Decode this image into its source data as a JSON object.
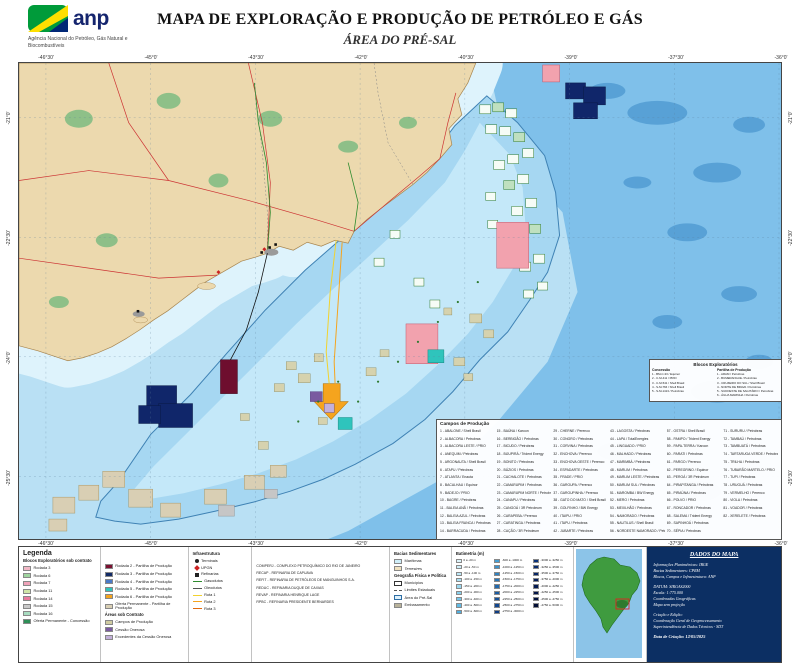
{
  "header": {
    "logo_text": "anp",
    "agency_name": "Agência Nacional do Petróleo, Gás Natural e Biocombustíveis",
    "title": "MAPA DE EXPLORAÇÃO E PRODUÇÃO DE PETRÓLEO E GÁS",
    "subtitle": "ÁREA DO PRÉ-SAL"
  },
  "map": {
    "lon_labels": [
      "-46°30'",
      "-45°0'",
      "-43°30'",
      "-42°0'",
      "-40°30'",
      "-39°0'",
      "-37°30'",
      "-36°0'"
    ],
    "lat_labels": [
      "-21°0'",
      "-22°30'",
      "-24°0'",
      "-25°30'"
    ],
    "overlays": {
      "blocos": {
        "title": "Blocos Exploratórios",
        "concessao_title": "Concessão",
        "partilha_title": "Partilha de Produção",
        "concessao": [
          "1 - BM-C-33 / Equinor",
          "2 - C-M-411 / PRIO",
          "3 - C-M-541 / Shell Brasil",
          "4 - S-M-766 / Shell Brasil",
          "5 - S-M-1413 / Petrobras"
        ],
        "partilha": [
          "1 - ARAM / Petrobras",
          "2 - BUMERANGUE / Petrobras",
          "3 - CRUZEIRO DO SUL / Shell Brasil",
          "4 - NORTE DE BRAVA / Petrobras",
          "5 - SUDOESTE DE SAGITÁRIO / Petrobras",
          "6 - ÁGUA MARINHA / Petrobras"
        ]
      },
      "campos": {
        "title": "Campos de Produção",
        "columns": [
          [
            "1 - ABALONE / Shell Brasil",
            "2 - ALBACORA / Petrobras",
            "3 - ALBACORA LESTE / PRIO",
            "4 - ANEQUIM / Petrobras",
            "5 - ARGONAUTA / Shell Brasil",
            "6 - ATAPU / Petrobras",
            "7 - ATLANTA / Enauta",
            "8 - BACALHAU / Equinor",
            "9 - BADEJO / PRIO",
            "10 - BAGRE / Petrobras",
            "11 - BALEIA ANÃ / Petrobras",
            "12 - BALEIA AZUL / Petrobras",
            "13 - BALEIA FRANCA / Petrobras",
            "14 - BARRACUDA / Petrobras"
          ],
          [
            "15 - BAÚNA / Karoon",
            "16 - BERBIGÃO / Petrobras",
            "17 - BICUDO / Petrobras",
            "18 - BIJUPIRÁ / Trident Energy",
            "19 - BONITO / Petrobras",
            "20 - BÚZIOS / Petrobras",
            "21 - CACHALOTE / Petrobras",
            "22 - CAMARUPIM / Petrobras",
            "23 - CAMARUPIM NORTE / Petrobras",
            "24 - CANAPU / Petrobras",
            "25 - CANGOÁ / 3R Petroleum",
            "26 - CARAPEBA / Perenco",
            "27 - CARATINGA / Petrobras",
            "28 - CAÇÃO / 3R Petroleum"
          ],
          [
            "29 - CHERNE / Perenco",
            "30 - CONGRO / Petrobras",
            "31 - CORVINA / Petrobras",
            "32 - ENCHOVA / Perenco",
            "33 - ENCHOVA OESTE / Perenco",
            "34 - ESPADARTE / Petrobras",
            "35 - FRADE / PRIO",
            "36 - GAROUPA / Perenco",
            "37 - GAROUPINHA / Perenco",
            "38 - GATO DO MATO / Shell Brasil",
            "39 - GOLFINHO / BW Energy",
            "40 - ITAIPU / PRIO",
            "41 - ITAPU / Petrobras",
            "42 - JUBARTE / Petrobras"
          ],
          [
            "43 - LAGOSTA / Petrobras",
            "44 - LAPA / TotalEnergies",
            "45 - LINGUADO / PRIO",
            "46 - MALHADO / Petrobras",
            "47 - MARIMBÁ / Petrobras",
            "48 - MARLIM / Petrobras",
            "49 - MARLIM LESTE / Petrobras",
            "50 - MARLIM SUL / Petrobras",
            "51 - MAROMBA / BW Energy",
            "52 - MERO / Petrobras",
            "53 - MEXILHÃO / Petrobras",
            "54 - NAMORADO / Petrobras",
            "55 - NAUTILUS / Shell Brasil",
            "56 - NORDESTE NAMORADO / Petrobras"
          ],
          [
            "57 - OSTRA / Shell Brasil",
            "58 - PAMPO / Trident Energy",
            "59 - PAPA-TERRA / Karoon",
            "60 - PARATI / Petrobras",
            "61 - PARGO / Perenco",
            "62 - PEREGRINO / Equinor",
            "63 - PEROÁ / 3R Petroleum",
            "64 - PIRAPITANGA / Petrobras",
            "65 - PIRAÚNA / Petrobras",
            "66 - POLVO / PRIO",
            "67 - RONCADOR / Petrobras",
            "68 - SALEMA / Trident Energy",
            "69 - SAPINHOÁ / Petrobras",
            "70 - SÉPIA / Petrobras"
          ],
          [
            "71 - SURURU / Petrobras",
            "72 - TAMBAÚ / Petrobras",
            "73 - TAMBUATÁ / Petrobras",
            "74 - TARTARUGA VERDE / Petrobras",
            "75 - TRILHA / Petrobras",
            "76 - TUBARÃO MARTELO / PRIO",
            "77 - TUPI / Petrobras",
            "78 - URUGUÁ / Petrobras",
            "79 - VERMELHO / Perenco",
            "80 - VIOLA / Petrobras",
            "81 - VOADOR / Petrobras",
            "82 - XERELETE / Petrobras"
          ]
        ]
      }
    }
  },
  "legend": {
    "title": "Legenda",
    "blocos_title": "Blocos Exploratórios sob contrato",
    "concessao_rounds": [
      {
        "label": "Rodada 3",
        "color": "#f2b8c6"
      },
      {
        "label": "Rodada 6",
        "color": "#9fd49f"
      },
      {
        "label": "Rodada 7",
        "color": "#efa3b9"
      },
      {
        "label": "Rodada 11",
        "color": "#cfe6a8"
      },
      {
        "label": "Rodada 14",
        "color": "#e87b9d"
      },
      {
        "label": "Rodada 15",
        "color": "#c9c9c9"
      },
      {
        "label": "Rodada 16",
        "color": "#a8dcc0"
      },
      {
        "label": "Oferta Permanente - Concessão",
        "color": "#2f8f57"
      }
    ],
    "partilha_rounds": [
      {
        "label": "Rodada 2 - Partilha de Produção",
        "color": "#7a1030"
      },
      {
        "label": "Rodada 3 - Partilha de Produção",
        "color": "#122a66"
      },
      {
        "label": "Rodada 4 - Partilha de Produção",
        "color": "#4a7ac8"
      },
      {
        "label": "Rodada 5 - Partilha de Produção",
        "color": "#2fc4bc"
      },
      {
        "label": "Rodada 6 - Partilha de Produção",
        "color": "#f5a41e"
      },
      {
        "label": "Oferta Permanente - Partilha de Produção",
        "color": "#d9cfb4"
      }
    ],
    "areas_title": "Áreas sob Contrato",
    "areas": [
      {
        "label": "Campos de Produção",
        "color": "#cfcba0"
      },
      {
        "label": "Cessão Onerosa",
        "color": "#7a5aa0"
      },
      {
        "label": "Excedentes da Cessão Onerosa",
        "color": "#c3b0da"
      }
    ],
    "infra": {
      "title": "Infraestrutura",
      "symbols": [
        {
          "label": "Terminais",
          "symbol": "circle",
          "color": "#222222"
        },
        {
          "label": "UPGN",
          "symbol": "diamond",
          "color": "#cc2222"
        },
        {
          "label": "Refinarias",
          "symbol": "square",
          "color": "#222222"
        }
      ],
      "lines": [
        {
          "label": "Gasodutos",
          "color": "#2e8b2e"
        },
        {
          "label": "Oleodutos",
          "color": "#555555"
        },
        {
          "label": "Rota 1",
          "color": "#f2d22e"
        },
        {
          "label": "Rota 2",
          "color": "#f5a41e"
        },
        {
          "label": "Rota 3",
          "color": "#e06a10"
        }
      ],
      "refinarias": [
        "COMPERJ - COMPLEXO PETROQUÍMICO DO RIO DE JANEIRO",
        "RECAP - REFINARIA DE CAPUAVA",
        "REFIT - REFINARIA DE PETRÓLEOS DE MANGUINHOS S.A.",
        "REDUC - REFINARIA DUQUE DE CAXIAS",
        "REVAP - REFINARIA HENRIQUE LAGE",
        "RPBC - REFINARIA PRESIDENTE BERNARDES"
      ]
    },
    "bacias": {
      "title": "Bacias Sedimentares",
      "items": [
        {
          "label": "Marítimas",
          "color": "#cfeef8"
        },
        {
          "label": "Terrestres",
          "color": "#f0e2c0",
          "italic": true
        }
      ],
      "geo_title": "Geografia Física e Política",
      "geo_items": [
        {
          "label": "Municípios",
          "type": "outline"
        },
        {
          "label": "Limites Estaduais",
          "type": "dash"
        },
        {
          "label": "Área do Pré-Sal",
          "type": "bluebox"
        },
        {
          "label": "Embasamento",
          "type": "fill",
          "color": "#b8b29a"
        }
      ]
    },
    "batimetria": {
      "title": "Batimetria (m)",
      "col1": [
        {
          "label": "0 a -20 m",
          "color": "#ddf4fb"
        },
        {
          "label": "-20 a -50 m",
          "color": "#cdeef9"
        },
        {
          "label": "-50 a -100 m",
          "color": "#bce7f6"
        },
        {
          "label": "-100 a -150 m",
          "color": "#abe0f3"
        },
        {
          "label": "-150 a -200 m",
          "color": "#9ad8f0"
        },
        {
          "label": "-200 a -300 m",
          "color": "#88cfec"
        },
        {
          "label": "-300 a -400 m",
          "color": "#75c5e8"
        },
        {
          "label": "-400 a -500 m",
          "color": "#62bae3"
        },
        {
          "label": "-500 a -600 m",
          "color": "#50aede"
        }
      ],
      "col2": [
        {
          "label": "-600 a -1000 m",
          "color": "#459fd4"
        },
        {
          "label": "-1000 a -1250 m",
          "color": "#3b91ca"
        },
        {
          "label": "-1250 a -1500 m",
          "color": "#3283c0"
        },
        {
          "label": "-1500 a -1750 m",
          "color": "#2a76b6"
        },
        {
          "label": "-1750 a -2000 m",
          "color": "#2369ac"
        },
        {
          "label": "-2000 a -2250 m",
          "color": "#1d5da2"
        },
        {
          "label": "-2250 a -2500 m",
          "color": "#175198"
        },
        {
          "label": "-2500 a -2750 m",
          "color": "#12468e"
        },
        {
          "label": "-2750 a -3000 m",
          "color": "#0e3c84"
        }
      ],
      "col3": [
        {
          "label": "-3000 a -3250 m",
          "color": "#0a337a"
        },
        {
          "label": "-3250 a -3500 m",
          "color": "#082c70"
        },
        {
          "label": "-3500 a -3750 m",
          "color": "#062566"
        },
        {
          "label": "-3750 a -4000 m",
          "color": "#051f5c"
        },
        {
          "label": "-4000 a -4250 m",
          "color": "#041a52"
        },
        {
          "label": "-4250 a -4500 m",
          "color": "#031548"
        },
        {
          "label": "-4500 a -4750 m",
          "color": "#02113e"
        },
        {
          "label": "-4750 a -5000 m",
          "color": "#020d34"
        }
      ]
    }
  },
  "dados": {
    "title": "DADOS DO MAPA",
    "sources": [
      "Informações Planimétricas: IBGE",
      "Bacias Sedimentares: CPRM",
      "Blocos, Campos e Infraestrutura: ANP"
    ],
    "datum": [
      "DATUM: SIRGAS2000",
      "Escala: 1:775.000",
      "Coordenadas Geográficas",
      "Mapa sem projeção"
    ],
    "credits": [
      "Criação e Edição:",
      "Coordenação Geral de Geoprocessamento",
      "Superintendência de Dados Técnicos - SDT"
    ],
    "date": "Data de Criação: 12/05/2025"
  },
  "colors": {
    "land": "#ecd9ae",
    "ocean_shallow": "#b9e0f4",
    "ocean_deep": "#7fc0ea",
    "presalt_area": "#a6d7f2",
    "presalt_inner": "#c8eafa",
    "block_navy": "#10266a",
    "block_maroon": "#6e0e2e",
    "block_orange": "#f5a41e",
    "block_teal": "#2fc4bc",
    "block_pink": "#f2a2ae",
    "dados_panel_bg": "#0c2f63"
  }
}
